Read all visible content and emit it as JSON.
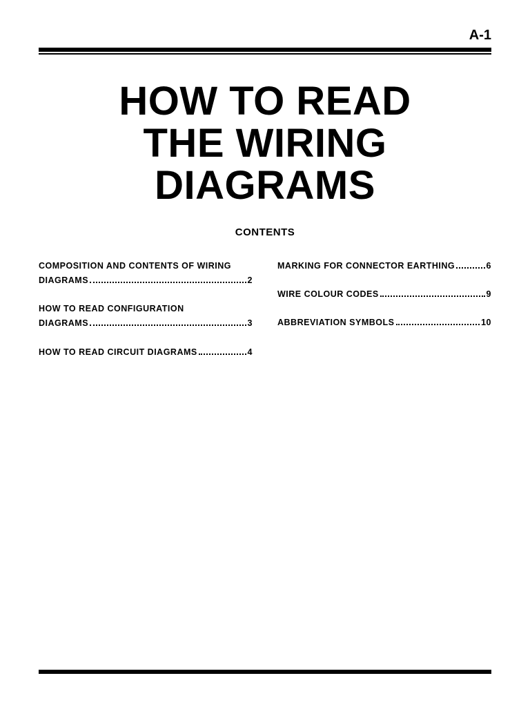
{
  "page_number": "A-1",
  "title_line1": "HOW TO READ",
  "title_line2": "THE WIRING",
  "title_line3": "DIAGRAMS",
  "contents_label": "CONTENTS",
  "colors": {
    "text": "#000000",
    "background": "#ffffff",
    "rule": "#000000"
  },
  "typography": {
    "title_fontsize": 58,
    "title_weight": 800,
    "toc_fontsize": 12.5,
    "toc_weight": "bold",
    "pagenum_fontsize": 20
  },
  "toc": {
    "left": [
      {
        "label_l1": "COMPOSITION AND CONTENTS OF WIRING",
        "label_l2": "DIAGRAMS",
        "page": "2"
      },
      {
        "label_l1": "HOW TO READ CONFIGURATION",
        "label_l2": "DIAGRAMS",
        "page": "3"
      },
      {
        "label_l1": "HOW TO READ CIRCUIT DIAGRAMS",
        "label_l2": "",
        "page": "4"
      }
    ],
    "right": [
      {
        "label_l1": "MARKING FOR CONNECTOR EARTHING",
        "label_l2": "",
        "page": "6"
      },
      {
        "label_l1": "WIRE COLOUR CODES",
        "label_l2": "",
        "page": "9"
      },
      {
        "label_l1": "ABBREVIATION SYMBOLS",
        "label_l2": "",
        "page": "10"
      }
    ]
  }
}
